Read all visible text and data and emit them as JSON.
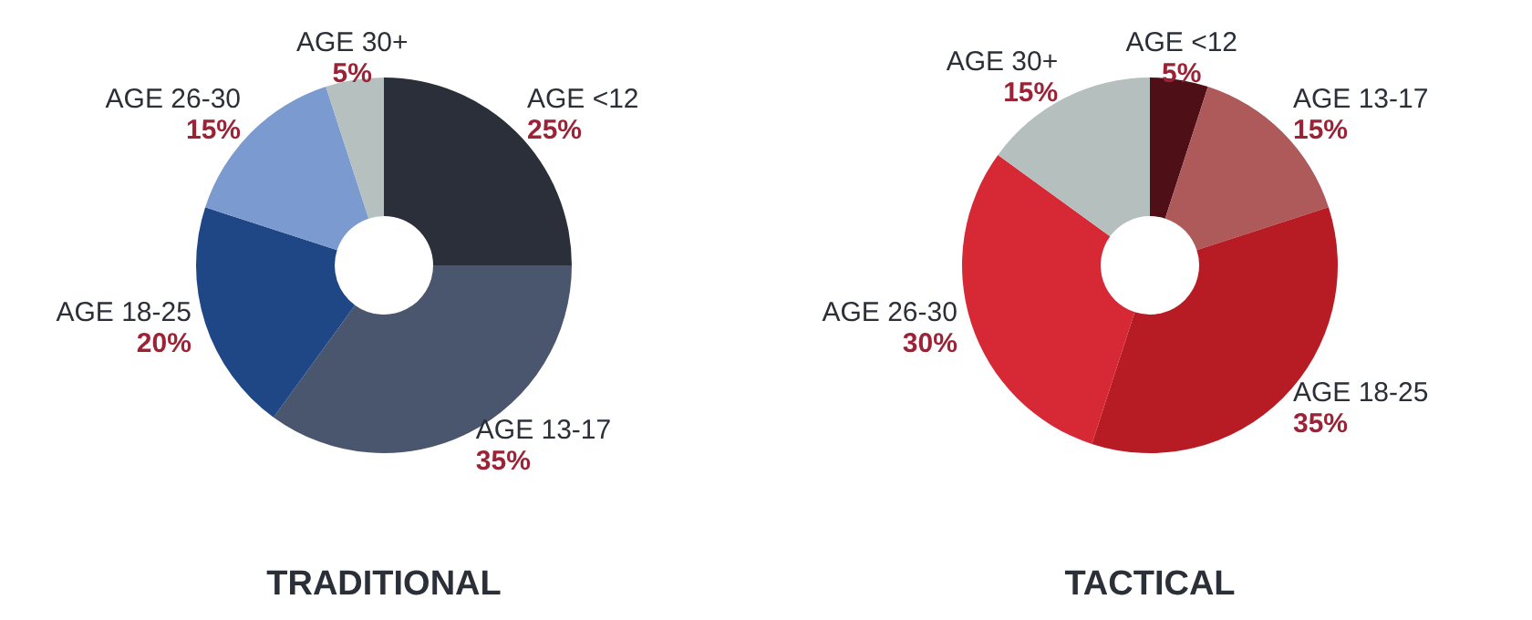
{
  "chart_data": [
    {
      "type": "donut",
      "title": "TRADITIONAL",
      "categories": [
        "AGE <12",
        "AGE 13-17",
        "AGE 18-25",
        "AGE 26-30",
        "AGE 30+"
      ],
      "values": [
        25,
        35,
        20,
        15,
        5
      ],
      "value_labels": [
        "25%",
        "35%",
        "20%",
        "15%",
        "5%"
      ],
      "colors": [
        "#2a2f3a",
        "#4a566e",
        "#1f4685",
        "#7b9bd0",
        "#b5c0bf"
      ]
    },
    {
      "type": "donut",
      "title": "TACTICAL",
      "categories": [
        "AGE <12",
        "AGE 13-17",
        "AGE 18-25",
        "AGE 26-30",
        "AGE 30+"
      ],
      "values": [
        5,
        15,
        35,
        30,
        15
      ],
      "value_labels": [
        "5%",
        "15%",
        "35%",
        "30%",
        "15%"
      ],
      "colors": [
        "#4e1016",
        "#ae5a5b",
        "#b71c24",
        "#d62835",
        "#b5bfbe"
      ]
    }
  ]
}
